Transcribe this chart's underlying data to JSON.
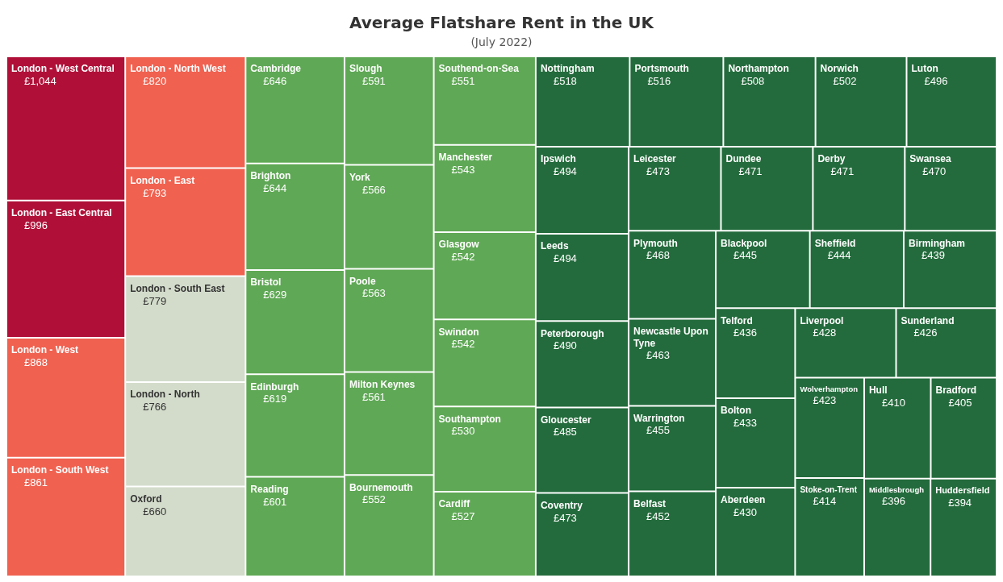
{
  "chart_data": {
    "type": "other",
    "title": "Average Flatshare Rent in the UK",
    "subtitle": "(July 2022)",
    "categories": [
      "London - West Central",
      "London - East Central",
      "London - West",
      "London - South West",
      "London - North West",
      "London - East",
      "London - South East",
      "London - North",
      "Oxford",
      "Cambridge",
      "Brighton",
      "Bristol",
      "Edinburgh",
      "Reading",
      "Slough",
      "York",
      "Poole",
      "Milton Keynes",
      "Bournemouth",
      "Southend-on-Sea",
      "Manchester",
      "Glasgow",
      "Swindon",
      "Southampton",
      "Cardiff",
      "Nottingham",
      "Portsmouth",
      "Northampton",
      "Norwich",
      "Luton",
      "Ipswich",
      "Leeds",
      "Peterborough",
      "Gloucester",
      "Coventry",
      "Leicester",
      "Dundee",
      "Derby",
      "Swansea",
      "Plymouth",
      "Newcastle Upon Tyne",
      "Warrington",
      "Belfast",
      "Blackpool",
      "Sheffield",
      "Birmingham",
      "Telford",
      "Bolton",
      "Aberdeen",
      "Liverpool",
      "Sunderland",
      "Wolverhampton",
      "Stoke-on-Trent",
      "Hull",
      "Bradford",
      "Middlesbrough",
      "Huddersfield"
    ],
    "values": [
      1044,
      996,
      868,
      861,
      820,
      793,
      779,
      766,
      660,
      646,
      644,
      629,
      619,
      601,
      591,
      566,
      563,
      561,
      552,
      551,
      543,
      542,
      542,
      530,
      527,
      518,
      516,
      508,
      502,
      496,
      494,
      494,
      490,
      485,
      473,
      473,
      471,
      471,
      470,
      468,
      463,
      455,
      452,
      445,
      444,
      439,
      436,
      433,
      430,
      428,
      426,
      423,
      414,
      410,
      405,
      396,
      394
    ],
    "value_labels": [
      "£1,044",
      "£996",
      "£868",
      "£861",
      "£820",
      "£793",
      "£779",
      "£766",
      "£660",
      "£646",
      "£644",
      "£629",
      "£619",
      "£601",
      "£591",
      "£566",
      "£563",
      "£561",
      "£552",
      "£551",
      "£543",
      "£542",
      "£542",
      "£530",
      "£527",
      "£518",
      "£516",
      "£508",
      "£502",
      "£496",
      "£494",
      "£494",
      "£490",
      "£485",
      "£473",
      "£473",
      "£471",
      "£471",
      "£470",
      "£468",
      "£463",
      "£455",
      "£452",
      "£445",
      "£444",
      "£439",
      "£436",
      "£433",
      "£430",
      "£428",
      "£426",
      "£423",
      "£414",
      "£410",
      "£405",
      "£396",
      "£394"
    ],
    "colors": [
      "#b01038",
      "#b01038",
      "#f06150",
      "#f06150",
      "#f06150",
      "#f06150",
      "#d3dccb",
      "#d3dccb",
      "#d3dccb",
      "#5fa855",
      "#5fa855",
      "#5fa855",
      "#5fa855",
      "#5fa855",
      "#5fa855",
      "#5fa855",
      "#5fa855",
      "#5fa855",
      "#5fa855",
      "#5fa855",
      "#5fa855",
      "#5fa855",
      "#5fa855",
      "#5fa855",
      "#5fa855",
      "#236b3c",
      "#236b3c",
      "#236b3c",
      "#236b3c",
      "#236b3c",
      "#236b3c",
      "#236b3c",
      "#236b3c",
      "#236b3c",
      "#236b3c",
      "#236b3c",
      "#236b3c",
      "#236b3c",
      "#236b3c",
      "#236b3c",
      "#236b3c",
      "#236b3c",
      "#236b3c",
      "#236b3c",
      "#236b3c",
      "#236b3c",
      "#236b3c",
      "#236b3c",
      "#236b3c",
      "#236b3c",
      "#236b3c",
      "#236b3c",
      "#236b3c",
      "#236b3c",
      "#236b3c",
      "#236b3c",
      "#236b3c"
    ]
  }
}
